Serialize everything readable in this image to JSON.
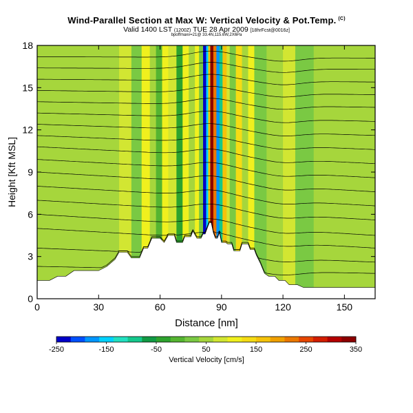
{
  "chart_data": {
    "type": "heatmap",
    "title": "Wind-Parallel Section at Max W: Vertical Velocity & Pot.Temp.",
    "title_mark": "(C)",
    "valid_line_main": "Valid 1400 LST",
    "valid_line_small1": "(1200Z)",
    "valid_line_date": "TUE 28 Apr 2009",
    "valid_line_small2": "[18hrFcst@0016z]",
    "location_line": "bpoffmaxv=21@ 33.4N,115.6W,2X6Pa",
    "xlabel": "Distance [nm]",
    "ylabel": "Height [Kft MSL]",
    "xlim": [
      0,
      165
    ],
    "ylim": [
      0,
      18
    ],
    "xticks": [
      0,
      30,
      60,
      90,
      120,
      150
    ],
    "yticks": [
      0,
      3,
      6,
      9,
      12,
      15,
      18
    ],
    "colorbar": {
      "label": "Vertical Velocity [cm/s]",
      "tick_labels": [
        -250,
        -150,
        -50,
        50,
        150,
        250,
        350
      ],
      "min": -250,
      "max": 350,
      "colors": [
        "#0000c8",
        "#0050ff",
        "#0096ff",
        "#00d2ff",
        "#22e0c0",
        "#14c88c",
        "#119a44",
        "#2da32d",
        "#55b531",
        "#7ac943",
        "#a6d63c",
        "#d2e632",
        "#f0f01e",
        "#f5dc14",
        "#f5c30a",
        "#f0a000",
        "#eb7800",
        "#e64600",
        "#d21e00",
        "#b40000",
        "#8c0000"
      ]
    },
    "terrain_kft": [
      [
        0,
        1.3
      ],
      [
        6,
        1.3
      ],
      [
        10,
        1.6
      ],
      [
        14,
        1.6
      ],
      [
        18,
        2.0
      ],
      [
        24,
        2.0
      ],
      [
        30,
        2.0
      ],
      [
        34,
        2.3
      ],
      [
        38,
        2.8
      ],
      [
        40,
        3.3
      ],
      [
        44,
        3.3
      ],
      [
        46,
        2.9
      ],
      [
        50,
        2.9
      ],
      [
        52,
        3.6
      ],
      [
        54,
        3.6
      ],
      [
        56,
        4.3
      ],
      [
        60,
        4.3
      ],
      [
        62,
        4.0
      ],
      [
        64,
        4.5
      ],
      [
        67,
        4.5
      ],
      [
        68,
        4.0
      ],
      [
        71,
        4.0
      ],
      [
        72,
        4.4
      ],
      [
        75,
        4.4
      ],
      [
        76,
        4.8
      ],
      [
        78,
        4.3
      ],
      [
        80,
        4.3
      ],
      [
        81,
        4.6
      ],
      [
        82,
        4.6
      ],
      [
        83,
        5.0
      ],
      [
        84,
        5.4
      ],
      [
        85,
        5.4
      ],
      [
        86,
        4.7
      ],
      [
        87,
        4.3
      ],
      [
        88,
        4.3
      ],
      [
        89,
        4.7
      ],
      [
        90,
        4.0
      ],
      [
        92,
        4.0
      ],
      [
        93,
        3.9
      ],
      [
        95,
        3.9
      ],
      [
        96,
        3.4
      ],
      [
        99,
        3.4
      ],
      [
        100,
        3.9
      ],
      [
        103,
        3.9
      ],
      [
        104,
        3.5
      ],
      [
        106,
        3.5
      ],
      [
        107,
        3.1
      ],
      [
        109,
        2.5
      ],
      [
        111,
        1.8
      ],
      [
        113,
        1.6
      ],
      [
        116,
        1.6
      ],
      [
        118,
        1.3
      ],
      [
        121,
        1.3
      ],
      [
        123,
        1.0
      ],
      [
        127,
        1.0
      ],
      [
        130,
        0.8
      ],
      [
        165,
        0.8
      ]
    ],
    "shading_columns": [
      {
        "x": [
          0,
          30
        ],
        "w": 40
      },
      {
        "x": [
          30,
          40
        ],
        "w": 50
      },
      {
        "x": [
          40,
          46
        ],
        "w": 90
      },
      {
        "x": [
          46,
          51
        ],
        "w": 20
      },
      {
        "x": [
          51,
          55
        ],
        "w": 120
      },
      {
        "x": [
          55,
          58
        ],
        "w": 60
      },
      {
        "x": [
          58,
          61
        ],
        "w": -20
      },
      {
        "x": [
          61,
          64
        ],
        "w": 110
      },
      {
        "x": [
          64,
          68
        ],
        "w": 70
      },
      {
        "x": [
          68,
          71
        ],
        "w": -30
      },
      {
        "x": [
          71,
          74
        ],
        "w": 100
      },
      {
        "x": [
          74,
          77
        ],
        "w": 40
      },
      {
        "x": [
          77,
          79
        ],
        "w": 120
      },
      {
        "x": [
          79,
          81
        ],
        "w": 30
      },
      {
        "x": [
          81,
          82.5
        ],
        "w": -230
      },
      {
        "x": [
          82.5,
          83.5
        ],
        "w": -150
      },
      {
        "x": [
          83.5,
          84.5
        ],
        "w": 150
      },
      {
        "x": [
          84.5,
          86
        ],
        "w": 340
      },
      {
        "x": [
          86,
          87.5
        ],
        "w": 220
      },
      {
        "x": [
          87.5,
          89
        ],
        "w": -180
      },
      {
        "x": [
          89,
          90.5
        ],
        "w": -90
      },
      {
        "x": [
          90.5,
          92.5
        ],
        "w": 160
      },
      {
        "x": [
          92.5,
          94
        ],
        "w": 80
      },
      {
        "x": [
          94,
          97
        ],
        "w": 10
      },
      {
        "x": [
          97,
          100
        ],
        "w": 130
      },
      {
        "x": [
          100,
          103
        ],
        "w": 40
      },
      {
        "x": [
          103,
          106
        ],
        "w": 110
      },
      {
        "x": [
          106,
          112
        ],
        "w": 20
      },
      {
        "x": [
          112,
          120
        ],
        "w": 60
      },
      {
        "x": [
          120,
          126
        ],
        "w": 80
      },
      {
        "x": [
          126,
          135
        ],
        "w": 30
      },
      {
        "x": [
          135,
          145
        ],
        "w": 60
      },
      {
        "x": [
          145,
          165
        ],
        "w": 50
      }
    ],
    "isentropes_kft": [
      {
        "left": 2.3,
        "right": 1.8
      },
      {
        "left": 3.6,
        "right": 2.6
      },
      {
        "left": 5.0,
        "right": 3.6
      },
      {
        "left": 6.0,
        "right": 4.5
      },
      {
        "left": 7.0,
        "right": 5.6
      },
      {
        "left": 8.0,
        "right": 6.6
      },
      {
        "left": 9.0,
        "right": 7.6
      },
      {
        "left": 9.9,
        "right": 8.6
      },
      {
        "left": 10.8,
        "right": 9.6
      },
      {
        "left": 11.6,
        "right": 10.6
      },
      {
        "left": 12.4,
        "right": 11.6
      },
      {
        "left": 13.2,
        "right": 12.6
      },
      {
        "left": 14.0,
        "right": 13.6
      },
      {
        "left": 14.8,
        "right": 14.5
      },
      {
        "left": 15.6,
        "right": 15.4
      },
      {
        "left": 16.4,
        "right": 16.3
      },
      {
        "left": 17.2,
        "right": 17.1
      }
    ]
  }
}
